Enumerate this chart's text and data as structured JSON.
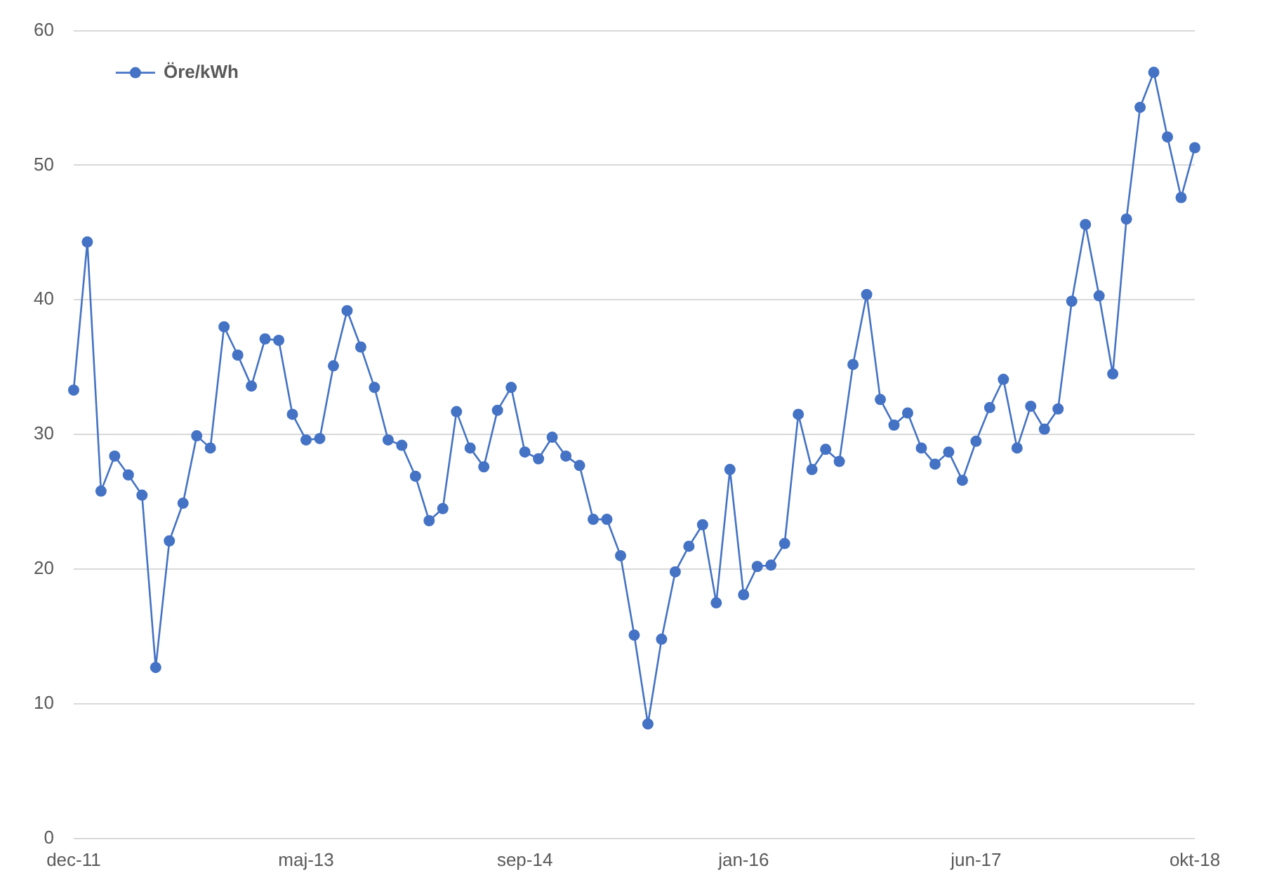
{
  "chart_data": {
    "type": "line",
    "categories": [
      "dec-11",
      null,
      null,
      null,
      null,
      null,
      null,
      null,
      null,
      null,
      null,
      null,
      null,
      null,
      null,
      null,
      null,
      "maj-13",
      null,
      null,
      null,
      null,
      null,
      null,
      null,
      null,
      null,
      null,
      null,
      null,
      null,
      null,
      null,
      "sep-14",
      null,
      null,
      null,
      null,
      null,
      null,
      null,
      null,
      null,
      null,
      null,
      null,
      null,
      null,
      null,
      "jan-16",
      null,
      null,
      null,
      null,
      null,
      null,
      null,
      null,
      null,
      null,
      null,
      null,
      null,
      null,
      null,
      null,
      "jun-17",
      null,
      null,
      null,
      null,
      null,
      null,
      null,
      null,
      null,
      null,
      null,
      null,
      null,
      null,
      null,
      "okt-18"
    ],
    "series": [
      {
        "name": "Öre/kWh",
        "color": "#4472c4",
        "values": [
          33.3,
          44.3,
          25.8,
          28.4,
          27.0,
          25.5,
          12.7,
          22.1,
          24.9,
          29.9,
          29.0,
          38.0,
          35.9,
          33.6,
          37.1,
          37.0,
          31.5,
          29.6,
          29.7,
          35.1,
          39.2,
          36.5,
          33.5,
          29.6,
          29.2,
          26.9,
          23.6,
          24.5,
          31.7,
          29.0,
          27.6,
          31.8,
          33.5,
          28.7,
          28.2,
          29.8,
          28.4,
          27.7,
          23.7,
          23.7,
          21.0,
          15.1,
          8.5,
          14.8,
          19.8,
          21.7,
          23.3,
          17.5,
          27.4,
          18.1,
          20.2,
          20.3,
          21.9,
          31.5,
          27.4,
          28.9,
          28.0,
          35.2,
          40.4,
          32.6,
          30.7,
          31.6,
          29.0,
          27.8,
          28.7,
          26.6,
          29.5,
          32.0,
          34.1,
          29.0,
          32.1,
          30.4,
          31.9,
          39.9,
          45.6,
          40.3,
          34.5,
          46.0,
          54.3,
          56.9,
          52.1,
          47.6,
          51.3
        ]
      }
    ],
    "ylim": [
      0,
      60
    ],
    "yticks": [
      0,
      10,
      20,
      30,
      40,
      50,
      60
    ],
    "grid": "y",
    "legend": "top left",
    "marker": "circle",
    "line_style": "solid"
  }
}
